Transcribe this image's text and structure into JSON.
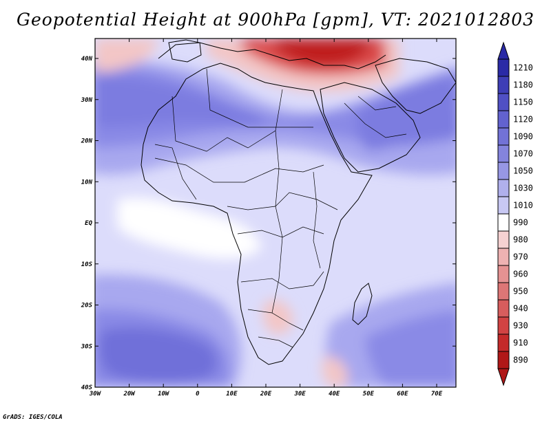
{
  "title": "Geopotential Height at 900hPa [gpm], VT: 2021012803",
  "credit": "GrADS: IGES/COLA",
  "colors": {
    "purple_dark": "#6f6fd9",
    "purple_mid": "#8a8ae6",
    "purple_light": "#a8a8ef",
    "lavender": "#c8c8f7",
    "pale_lavender": "#dcdcfb",
    "white": "#ffffff",
    "red_dark": "#bf1d1d",
    "red_mid": "#db4b4b",
    "pink": "#f3c6c6"
  },
  "map": {
    "latitude_labels": [
      "40N",
      "30N",
      "20N",
      "10N",
      "EQ",
      "10S",
      "20S",
      "30S",
      "40S"
    ],
    "longitude_labels": [
      "30W",
      "20W",
      "10W",
      "0",
      "10E",
      "20E",
      "30E",
      "40E",
      "50E",
      "60E",
      "70E"
    ]
  },
  "colorbar": {
    "levels": [
      "1210",
      "1180",
      "1150",
      "1120",
      "1090",
      "1070",
      "1050",
      "1030",
      "1010",
      "990",
      "980",
      "970",
      "960",
      "950",
      "940",
      "930",
      "910",
      "890"
    ],
    "colors": [
      "#2a2aa6",
      "#3e3eb6",
      "#5050c4",
      "#6262cf",
      "#7272d6",
      "#8484dd",
      "#9797e4",
      "#b0b0ec",
      "#c8c8f3",
      "#ffffff",
      "#f6d2d2",
      "#eeb2b2",
      "#e59292",
      "#dd7676",
      "#d75d5d",
      "#d14343",
      "#c42a2a",
      "#b01818"
    ]
  }
}
